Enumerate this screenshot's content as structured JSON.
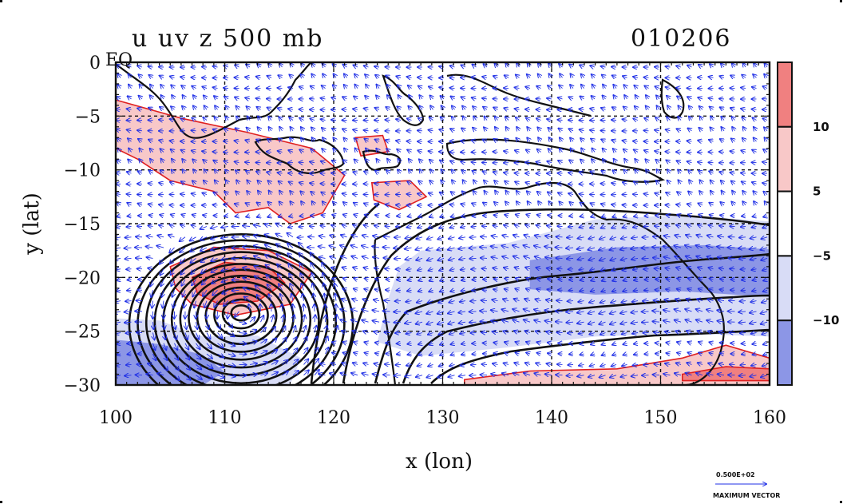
{
  "chart_data": {
    "type": "heatmap",
    "title": "u uv z 500 mb",
    "date_label": "010206",
    "xlabel": "x (lon)",
    "ylabel": "y (lat)",
    "xlim": [
      100,
      160
    ],
    "ylim": [
      -30,
      0
    ],
    "x_ticks": [
      "100",
      "110",
      "120",
      "130",
      "140",
      "150",
      "160"
    ],
    "x_tick_values": [
      100,
      110,
      120,
      130,
      140,
      150,
      160
    ],
    "y_ticks": [
      "0",
      "−5",
      "−10",
      "−15",
      "−20",
      "−25",
      "−30"
    ],
    "y_tick_values": [
      0,
      -5,
      -10,
      -15,
      -20,
      -25,
      -30
    ],
    "eq_label": "EQ",
    "grid": true,
    "colorbar": {
      "labels": [
        "10",
        "5",
        "−5",
        "−10"
      ],
      "label_values": [
        10,
        5,
        -5,
        -10
      ],
      "bands": [
        {
          "range": [
            10,
            15
          ],
          "color": "#f08080"
        },
        {
          "range": [
            5,
            10
          ],
          "color": "#f8c8c8"
        },
        {
          "range": [
            -5,
            5
          ],
          "color": "#ffffff"
        },
        {
          "range": [
            -10,
            -5
          ],
          "color": "#d8dcf6"
        },
        {
          "range": [
            -15,
            -10
          ],
          "color": "#8c96e6"
        }
      ]
    },
    "shaded_regions": [
      {
        "name": "positive-u-west",
        "level": "5 to 10",
        "color": "#f8c8c8",
        "points": [
          [
            100,
            -3.5
          ],
          [
            106,
            -5.2
          ],
          [
            112,
            -6.5
          ],
          [
            118,
            -8
          ],
          [
            121,
            -10.5
          ],
          [
            119,
            -14
          ],
          [
            116,
            -15
          ],
          [
            114,
            -13.5
          ],
          [
            111,
            -14
          ],
          [
            109,
            -12
          ],
          [
            105,
            -11
          ],
          [
            102,
            -9
          ],
          [
            100,
            -8
          ]
        ]
      },
      {
        "name": "positive-u-islands",
        "level": "5 to 10",
        "color": "#f8c8c8",
        "points": [
          [
            122,
            -7
          ],
          [
            124.5,
            -6.8
          ],
          [
            125,
            -8.3
          ],
          [
            122.5,
            -8.7
          ]
        ]
      },
      {
        "name": "positive-u-coral",
        "level": "5 to 10",
        "color": "#f8c8c8",
        "points": [
          [
            123.5,
            -11.2
          ],
          [
            127,
            -11
          ],
          [
            128.5,
            -12.5
          ],
          [
            126,
            -13.7
          ],
          [
            123.7,
            -12.8
          ]
        ]
      },
      {
        "name": "positive-u-jet-south",
        "level": "5 to 10",
        "color": "#f8c8c8",
        "points": [
          [
            105,
            -19
          ],
          [
            109,
            -17.2
          ],
          [
            114,
            -17.5
          ],
          [
            118,
            -19.5
          ],
          [
            116,
            -22.5
          ],
          [
            111,
            -23.5
          ],
          [
            107,
            -22.5
          ],
          [
            105.5,
            -21
          ]
        ]
      },
      {
        "name": "strong-u-jet-south",
        "level": "10 to 15",
        "color": "#f08080",
        "points": [
          [
            107,
            -20
          ],
          [
            110,
            -18.6
          ],
          [
            114,
            -19
          ],
          [
            115.5,
            -20.5
          ],
          [
            113,
            -22.2
          ],
          [
            109.5,
            -22.5
          ],
          [
            107.5,
            -21.5
          ]
        ]
      },
      {
        "name": "positive-u-southeast",
        "level": "5 to 10",
        "color": "#f8c8c8",
        "points": [
          [
            132,
            -29.5
          ],
          [
            138,
            -28.7
          ],
          [
            146,
            -28.5
          ],
          [
            152,
            -27.5
          ],
          [
            156,
            -26.3
          ],
          [
            160,
            -27.5
          ],
          [
            160,
            -30
          ],
          [
            132,
            -30
          ]
        ]
      },
      {
        "name": "strong-u-southeast",
        "level": "10 to 15",
        "color": "#f08080",
        "points": [
          [
            152,
            -29
          ],
          [
            156,
            -28.3
          ],
          [
            160,
            -28.5
          ],
          [
            160,
            -29.6
          ],
          [
            152,
            -29.6
          ]
        ]
      },
      {
        "name": "easterly-band-outer",
        "level": "-10 to -5",
        "color": "#d8dcf6",
        "points": [
          [
            128,
            -17.5
          ],
          [
            136,
            -16.8
          ],
          [
            144,
            -14.6
          ],
          [
            152,
            -14.2
          ],
          [
            160,
            -14.8
          ],
          [
            160,
            -25.5
          ],
          [
            152,
            -25.2
          ],
          [
            144,
            -25.5
          ],
          [
            136,
            -26.5
          ],
          [
            128,
            -27.3
          ],
          [
            124,
            -26
          ],
          [
            125,
            -22
          ],
          [
            126,
            -19
          ]
        ]
      },
      {
        "name": "easterly-band-core",
        "level": "-15 to -10",
        "color": "#8c96e6",
        "points": [
          [
            138,
            -18.4
          ],
          [
            146,
            -17.2
          ],
          [
            154,
            -17
          ],
          [
            160,
            -17.4
          ],
          [
            160,
            -21.8
          ],
          [
            152,
            -21.3
          ],
          [
            144,
            -21.6
          ],
          [
            138,
            -21.1
          ]
        ]
      },
      {
        "name": "easterly-southwest",
        "level": "-10 to -5",
        "color": "#d8dcf6",
        "points": [
          [
            100,
            -23.8
          ],
          [
            104,
            -24
          ],
          [
            108,
            -25.5
          ],
          [
            113,
            -25.4
          ],
          [
            117,
            -27.5
          ],
          [
            116,
            -30
          ],
          [
            100,
            -30
          ]
        ]
      },
      {
        "name": "easterly-southwest-core",
        "level": "-15 to -10",
        "color": "#8c96e6",
        "points": [
          [
            100,
            -25.8
          ],
          [
            104,
            -26.2
          ],
          [
            108,
            -27.2
          ],
          [
            110,
            -28.8
          ],
          [
            108,
            -30
          ],
          [
            100,
            -30
          ]
        ]
      }
    ],
    "contour_rings": {
      "center": [
        111.5,
        -23.3
      ],
      "count": 13,
      "rx_start": 0.9,
      "ry_start": 0.7,
      "rx_step": 0.78,
      "ry_step": 0.64
    }
  }
}
